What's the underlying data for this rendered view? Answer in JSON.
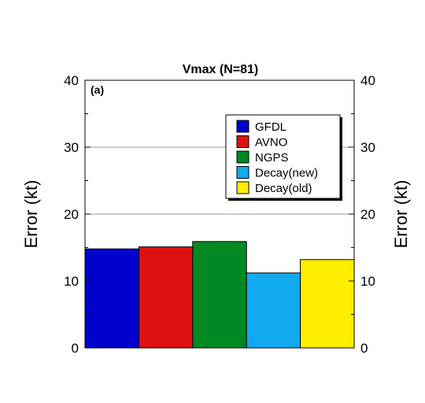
{
  "chart_data": {
    "type": "bar",
    "title": "Vmax (N=81)",
    "panel_label": "(a)",
    "ylabel_left": "Error (kt)",
    "ylabel_right": "Error (kt)",
    "ylim": [
      0,
      40
    ],
    "yticks": [
      0,
      10,
      20,
      30,
      40
    ],
    "grid": true,
    "legend_position": "top-right",
    "categories": [
      "GFDL",
      "AVNO",
      "NGPS",
      "Decay(new)",
      "Decay(old)"
    ],
    "values": [
      14.8,
      15.1,
      15.9,
      11.2,
      13.2
    ],
    "colors": [
      "#0000cc",
      "#dd1111",
      "#008822",
      "#11aaee",
      "#ffee00"
    ]
  }
}
